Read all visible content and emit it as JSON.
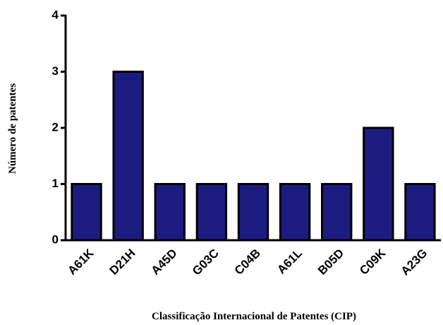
{
  "chart_data": {
    "type": "bar",
    "xlabel": "Classificação Internacional de Patentes (CIP)",
    "ylabel": "Número de patentes",
    "categories": [
      "A61K",
      "D21H",
      "A45D",
      "G03C",
      "C04B",
      "A61L",
      "B05D",
      "C09K",
      "A23G"
    ],
    "values": [
      1,
      3,
      1,
      1,
      1,
      1,
      1,
      2,
      1
    ],
    "color": "#1c1c80",
    "ylim": [
      0,
      4
    ],
    "yticks": [
      0,
      1,
      2,
      3,
      4
    ],
    "grid": false
  }
}
